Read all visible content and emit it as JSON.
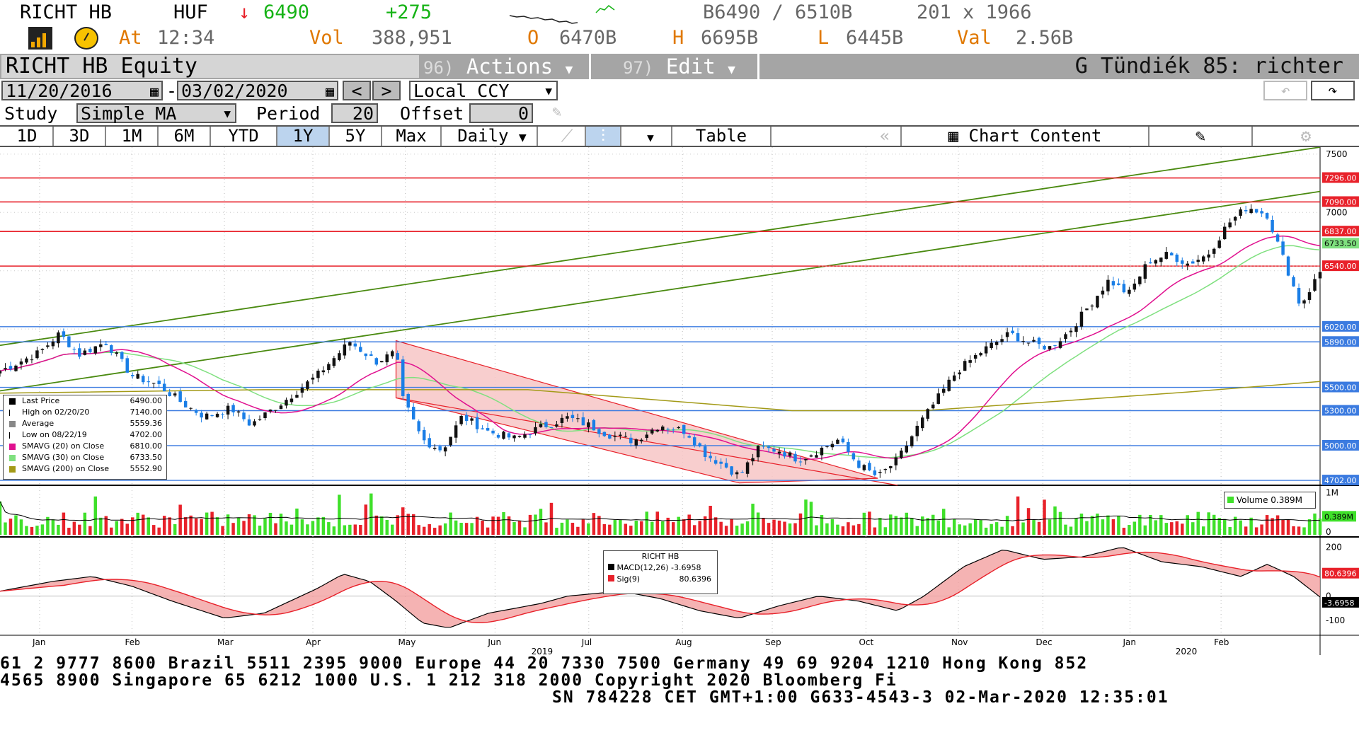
{
  "header": {
    "ticker": "RICHT HB",
    "currency": "HUF",
    "arrow": "↓",
    "last": "6490",
    "change": "+275",
    "bid_ask": "B6490 / 6510B",
    "size": "201 x 1966",
    "at_label": "At",
    "time": "12:34",
    "vol_label": "Vol",
    "vol": "388,951",
    "open_label": "O",
    "open": "6470B",
    "high_label": "H",
    "high": "6695B",
    "low_label": "L",
    "low": "6445B",
    "val_label": "Val",
    "val": "2.56B"
  },
  "menu": {
    "security": "RICHT HB Equity",
    "actions_num": "96)",
    "actions": "Actions",
    "edit_num": "97)",
    "edit": "Edit",
    "right_title": "G Tündiék 85: richter"
  },
  "dates": {
    "start": "11/20/2016",
    "end": "03/02/2020",
    "prev": "<",
    "next": ">",
    "ccy": "Local CCY"
  },
  "study": {
    "label": "Study",
    "value": "Simple MA",
    "period_label": "Period",
    "period": "20",
    "offset_label": "Offset",
    "offset": "0"
  },
  "tabs": [
    "1D",
    "3D",
    "1M",
    "6M",
    "YTD",
    "1Y",
    "5Y",
    "Max"
  ],
  "active_tab": "1Y",
  "freq": "Daily",
  "table_label": "Table",
  "chart_content_label": "Chart Content",
  "colors": {
    "up": "#111111",
    "down": "#1a7ee6",
    "sma20": "#e0108f",
    "sma30": "#7fe07f",
    "sma200": "#a39a17",
    "channel": "#e8212a",
    "trend": "#4a8a10",
    "hline_red": "#e8212a",
    "hline_blue": "#3b7be0"
  },
  "legend": [
    {
      "label": "Last Price",
      "value": "6490.00"
    },
    {
      "label": "High on 02/20/20",
      "value": "7140.00"
    },
    {
      "label": "Average",
      "value": "5559.36"
    },
    {
      "label": "Low on 08/22/19",
      "value": "4702.00"
    },
    {
      "label": "SMAVG (20)  on Close",
      "value": "6810.00"
    },
    {
      "label": "SMAVG (30)  on Close",
      "value": "6733.50"
    },
    {
      "label": "SMAVG (200)  on Close",
      "value": "5552.90"
    }
  ],
  "volume_legend": {
    "label": "Volume",
    "value": "0.389M"
  },
  "macd_legend": {
    "title": "RICHT HB",
    "macd_label": "MACD(12,26)",
    "macd_value": "-3.6958",
    "sig_label": "Sig(9)",
    "sig_value": "80.6396"
  },
  "chart_data": {
    "type": "candlestick",
    "ylim": [
      4660,
      7560
    ],
    "y_ticks": [
      "7500",
      "7000"
    ],
    "price_labels": [
      {
        "v": 7296,
        "text": "7296.00",
        "color": "red"
      },
      {
        "v": 7090,
        "text": "7090.00",
        "color": "red"
      },
      {
        "v": 6837,
        "text": "6837.00",
        "color": "red"
      },
      {
        "v": 6733.5,
        "text": "6733.50",
        "color": "green"
      },
      {
        "v": 6540,
        "text": "6540.00",
        "color": "red"
      },
      {
        "v": 6020,
        "text": "6020.00",
        "color": "blue"
      },
      {
        "v": 5890,
        "text": "5890.00",
        "color": "blue"
      },
      {
        "v": 5500,
        "text": "5500.00",
        "color": "blue"
      },
      {
        "v": 5300,
        "text": "5300.00",
        "color": "blue"
      },
      {
        "v": 5000,
        "text": "5000.00",
        "color": "blue"
      },
      {
        "v": 4702,
        "text": "4702.00",
        "color": "blue"
      }
    ],
    "red_lines": [
      7296,
      7090,
      6837,
      6540
    ],
    "blue_lines": [
      6020,
      5890,
      5500,
      5300,
      5000,
      4702
    ],
    "close_points": [
      {
        "t": 0,
        "c": 5640
      },
      {
        "t": 0.03,
        "c": 5800
      },
      {
        "t": 0.045,
        "c": 5960
      },
      {
        "t": 0.06,
        "c": 5780
      },
      {
        "t": 0.08,
        "c": 5890
      },
      {
        "t": 0.1,
        "c": 5600
      },
      {
        "t": 0.12,
        "c": 5520
      },
      {
        "t": 0.14,
        "c": 5350
      },
      {
        "t": 0.155,
        "c": 5250
      },
      {
        "t": 0.175,
        "c": 5320
      },
      {
        "t": 0.19,
        "c": 5180
      },
      {
        "t": 0.215,
        "c": 5380
      },
      {
        "t": 0.24,
        "c": 5600
      },
      {
        "t": 0.265,
        "c": 5890
      },
      {
        "t": 0.285,
        "c": 5720
      },
      {
        "t": 0.3,
        "c": 5800
      },
      {
        "t": 0.305,
        "c": 5400
      },
      {
        "t": 0.32,
        "c": 5050
      },
      {
        "t": 0.335,
        "c": 4960
      },
      {
        "t": 0.35,
        "c": 5250
      },
      {
        "t": 0.37,
        "c": 5120
      },
      {
        "t": 0.39,
        "c": 5060
      },
      {
        "t": 0.41,
        "c": 5160
      },
      {
        "t": 0.43,
        "c": 5240
      },
      {
        "t": 0.445,
        "c": 5180
      },
      {
        "t": 0.46,
        "c": 5100
      },
      {
        "t": 0.48,
        "c": 5040
      },
      {
        "t": 0.5,
        "c": 5180
      },
      {
        "t": 0.52,
        "c": 5120
      },
      {
        "t": 0.535,
        "c": 4920
      },
      {
        "t": 0.55,
        "c": 4820
      },
      {
        "t": 0.56,
        "c": 4740
      },
      {
        "t": 0.575,
        "c": 4980
      },
      {
        "t": 0.59,
        "c": 4960
      },
      {
        "t": 0.605,
        "c": 4880
      },
      {
        "t": 0.62,
        "c": 4960
      },
      {
        "t": 0.635,
        "c": 5050
      },
      {
        "t": 0.65,
        "c": 4840
      },
      {
        "t": 0.665,
        "c": 4730
      },
      {
        "t": 0.68,
        "c": 4880
      },
      {
        "t": 0.695,
        "c": 5160
      },
      {
        "t": 0.71,
        "c": 5400
      },
      {
        "t": 0.725,
        "c": 5640
      },
      {
        "t": 0.745,
        "c": 5820
      },
      {
        "t": 0.765,
        "c": 5960
      },
      {
        "t": 0.78,
        "c": 5880
      },
      {
        "t": 0.795,
        "c": 5840
      },
      {
        "t": 0.81,
        "c": 5980
      },
      {
        "t": 0.825,
        "c": 6200
      },
      {
        "t": 0.84,
        "c": 6420
      },
      {
        "t": 0.855,
        "c": 6300
      },
      {
        "t": 0.87,
        "c": 6580
      },
      {
        "t": 0.885,
        "c": 6640
      },
      {
        "t": 0.9,
        "c": 6560
      },
      {
        "t": 0.915,
        "c": 6640
      },
      {
        "t": 0.93,
        "c": 6900
      },
      {
        "t": 0.945,
        "c": 7050
      },
      {
        "t": 0.96,
        "c": 6980
      },
      {
        "t": 0.965,
        "c": 6820
      },
      {
        "t": 0.975,
        "c": 6520
      },
      {
        "t": 0.985,
        "c": 6200
      },
      {
        "t": 1,
        "c": 6490
      }
    ],
    "sma200": [
      [
        0,
        5450
      ],
      [
        0.2,
        5480
      ],
      [
        0.4,
        5480
      ],
      [
        0.6,
        5300
      ],
      [
        0.7,
        5300
      ],
      [
        0.8,
        5380
      ],
      [
        0.9,
        5460
      ],
      [
        1,
        5550
      ]
    ],
    "volume_ylim": [
      0,
      1.0
    ],
    "volume_ticks": [
      "1M",
      "0"
    ],
    "volume_last": "0.389M",
    "macd_ylim": [
      -160,
      230
    ],
    "macd_ticks": [
      "200",
      "0",
      "-100"
    ],
    "macd_labels": [
      {
        "v": 80.6396,
        "text": "80.6396"
      },
      {
        "v": -3.6958,
        "text": "-3.6958"
      }
    ],
    "macd_points": [
      [
        0,
        20
      ],
      [
        0.04,
        60
      ],
      [
        0.07,
        80
      ],
      [
        0.1,
        40
      ],
      [
        0.13,
        -20
      ],
      [
        0.17,
        -90
      ],
      [
        0.2,
        -70
      ],
      [
        0.24,
        30
      ],
      [
        0.26,
        90
      ],
      [
        0.28,
        60
      ],
      [
        0.3,
        -20
      ],
      [
        0.32,
        -110
      ],
      [
        0.34,
        -130
      ],
      [
        0.37,
        -70
      ],
      [
        0.41,
        -30
      ],
      [
        0.43,
        0
      ],
      [
        0.47,
        20
      ],
      [
        0.5,
        -10
      ],
      [
        0.53,
        -60
      ],
      [
        0.56,
        -90
      ],
      [
        0.59,
        -40
      ],
      [
        0.62,
        0
      ],
      [
        0.65,
        -20
      ],
      [
        0.68,
        -60
      ],
      [
        0.7,
        0
      ],
      [
        0.73,
        120
      ],
      [
        0.76,
        190
      ],
      [
        0.79,
        150
      ],
      [
        0.82,
        160
      ],
      [
        0.85,
        200
      ],
      [
        0.88,
        140
      ],
      [
        0.91,
        120
      ],
      [
        0.94,
        80
      ],
      [
        0.96,
        130
      ],
      [
        0.98,
        80
      ],
      [
        1,
        -4
      ]
    ],
    "x_labels": [
      {
        "t": 0.03,
        "text": "Jan"
      },
      {
        "t": 0.1,
        "text": "Feb"
      },
      {
        "t": 0.17,
        "text": "Mar"
      },
      {
        "t": 0.237,
        "text": "Apr"
      },
      {
        "t": 0.307,
        "text": "May"
      },
      {
        "t": 0.375,
        "text": "Jun"
      },
      {
        "t": 0.446,
        "text": "Jul"
      },
      {
        "t": 0.517,
        "text": "Aug"
      },
      {
        "t": 0.585,
        "text": "Sep"
      },
      {
        "t": 0.656,
        "text": "Oct"
      },
      {
        "t": 0.726,
        "text": "Nov"
      },
      {
        "t": 0.79,
        "text": "Dec"
      },
      {
        "t": 0.856,
        "text": "Jan"
      },
      {
        "t": 0.925,
        "text": "Feb"
      }
    ],
    "year_labels": [
      {
        "t": 0.41,
        "text": "2019"
      },
      {
        "t": 0.898,
        "text": "2020"
      }
    ]
  },
  "footer": {
    "line1": "61 2 9777 8600 Brazil 5511 2395 9000 Europe 44 20 7330 7500 Germany 49 69 9204 1210 Hong Kong 852",
    "line2": " 4565 8900       Singapore 65 6212 1000      U.S. 1 212 318 2000       Copyright 2020 Bloomberg Fi",
    "line3": "SN 784228 CET  GMT+1:00 G633-4543-3 02-Mar-2020 12:35:01"
  }
}
